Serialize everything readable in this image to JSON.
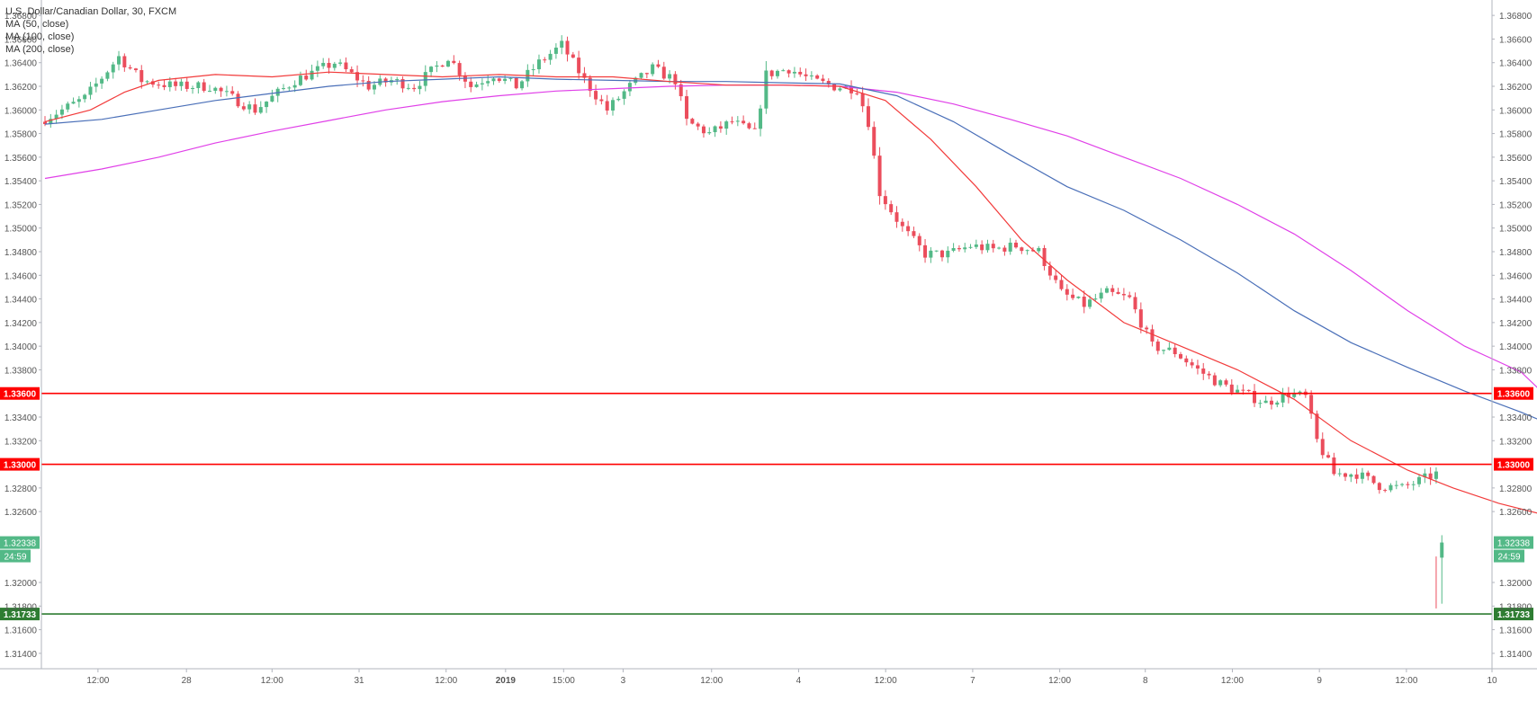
{
  "legend": {
    "title": "U.S. Dollar/Canadian Dollar, 30, FXCM",
    "ma50": "MA (50, close)",
    "ma100": "MA (100, close)",
    "ma200": "MA (200, close)"
  },
  "colors": {
    "up": "#53b987",
    "down": "#eb4d5c",
    "ma50": "#f23b3b",
    "ma100": "#4a6fb8",
    "ma200": "#e040e8",
    "resistance": "#ff0000",
    "support": "#2e7d32",
    "last_price": "#53b987"
  },
  "chart_data": {
    "type": "candlestick",
    "title": "U.S. Dollar/Canadian Dollar, 30, FXCM",
    "ylim": [
      1.313,
      1.369
    ],
    "y_ticks": [
      "1.36800",
      "1.36600",
      "1.36400",
      "1.36200",
      "1.36000",
      "1.35800",
      "1.35600",
      "1.35400",
      "1.35200",
      "1.35000",
      "1.34800",
      "1.34600",
      "1.34400",
      "1.34200",
      "1.34000",
      "1.33800",
      "1.33400",
      "1.33200",
      "1.32800",
      "1.32600",
      "1.32000",
      "1.31800",
      "1.31600",
      "1.31400"
    ],
    "y_tick_values": [
      1.368,
      1.366,
      1.364,
      1.362,
      1.36,
      1.358,
      1.356,
      1.354,
      1.352,
      1.35,
      1.348,
      1.346,
      1.344,
      1.342,
      1.34,
      1.338,
      1.334,
      1.332,
      1.328,
      1.326,
      1.32,
      1.318,
      1.316,
      1.314
    ],
    "x_range": [
      0,
      100
    ],
    "x_tick_labels": [
      "12:00",
      "28",
      "12:00",
      "31",
      "12:00",
      "2019",
      "15:00",
      "3",
      "12:00",
      "4",
      "12:00",
      "7",
      "12:00",
      "8",
      "12:00",
      "9",
      "12:00",
      "10"
    ],
    "x_tick_positions": [
      3.9,
      10.0,
      15.9,
      21.9,
      27.9,
      32.0,
      36.0,
      40.1,
      46.2,
      52.2,
      58.2,
      64.2,
      70.2,
      76.1,
      82.1,
      88.1,
      94.1,
      100.0
    ],
    "x_tick_bold": [
      false,
      false,
      false,
      false,
      false,
      true,
      false,
      false,
      false,
      false,
      false,
      false,
      false,
      false,
      false,
      false,
      false,
      false
    ],
    "candle_count": 247,
    "anchors": [
      [
        0,
        1.359
      ],
      [
        8,
        1.361
      ],
      [
        14,
        1.3645
      ],
      [
        18,
        1.3625
      ],
      [
        24,
        1.362
      ],
      [
        30,
        1.362
      ],
      [
        38,
        1.36
      ],
      [
        45,
        1.3625
      ],
      [
        52,
        1.364
      ],
      [
        58,
        1.362
      ],
      [
        62,
        1.3625
      ],
      [
        66,
        1.362
      ],
      [
        72,
        1.3645
      ],
      [
        76,
        1.362
      ],
      [
        80,
        1.363
      ],
      [
        84,
        1.362
      ],
      [
        88,
        1.364
      ],
      [
        92,
        1.3655
      ],
      [
        96,
        1.3625
      ],
      [
        100,
        1.36
      ],
      [
        104,
        1.362
      ],
      [
        108,
        1.3635
      ],
      [
        112,
        1.3625
      ],
      [
        114,
        1.359
      ],
      [
        118,
        1.358
      ],
      [
        122,
        1.359
      ],
      [
        126,
        1.358
      ],
      [
        128,
        1.363
      ],
      [
        132,
        1.3635
      ],
      [
        136,
        1.3625
      ],
      [
        140,
        1.362
      ],
      [
        144,
        1.3618
      ],
      [
        146,
        1.359
      ],
      [
        148,
        1.353
      ],
      [
        152,
        1.35
      ],
      [
        156,
        1.3478
      ],
      [
        160,
        1.3478
      ],
      [
        164,
        1.3485
      ],
      [
        168,
        1.3482
      ],
      [
        172,
        1.3485
      ],
      [
        176,
        1.348
      ],
      [
        180,
        1.3445
      ],
      [
        184,
        1.3435
      ],
      [
        188,
        1.3445
      ],
      [
        192,
        1.344
      ],
      [
        196,
        1.34
      ],
      [
        200,
        1.3395
      ],
      [
        204,
        1.338
      ],
      [
        208,
        1.3368
      ],
      [
        212,
        1.336
      ],
      [
        216,
        1.3352
      ],
      [
        220,
        1.336
      ],
      [
        223,
        1.3357
      ],
      [
        225,
        1.332
      ],
      [
        228,
        1.3292
      ],
      [
        232,
        1.3292
      ],
      [
        236,
        1.3282
      ],
      [
        240,
        1.328
      ],
      [
        244,
        1.3288
      ],
      [
        246,
        1.3292
      ],
      [
        247,
        1.328
      ],
      [
        248,
        1.329
      ],
      [
        250,
        1.329
      ]
    ],
    "last_candle": {
      "open": 1.3221,
      "high": 1.324,
      "low": 1.3182,
      "close": 1.32338
    },
    "ma_50": [
      [
        0,
        1.359
      ],
      [
        8,
        1.36
      ],
      [
        14,
        1.3615
      ],
      [
        20,
        1.3625
      ],
      [
        30,
        1.363
      ],
      [
        40,
        1.3628
      ],
      [
        50,
        1.3632
      ],
      [
        60,
        1.363
      ],
      [
        70,
        1.3628
      ],
      [
        80,
        1.363
      ],
      [
        90,
        1.3628
      ],
      [
        100,
        1.3628
      ],
      [
        110,
        1.3624
      ],
      [
        120,
        1.3621
      ],
      [
        130,
        1.3621
      ],
      [
        140,
        1.362
      ],
      [
        148,
        1.3608
      ],
      [
        156,
        1.3575
      ],
      [
        164,
        1.3535
      ],
      [
        172,
        1.349
      ],
      [
        180,
        1.3456
      ],
      [
        190,
        1.342
      ],
      [
        200,
        1.34
      ],
      [
        210,
        1.338
      ],
      [
        220,
        1.3355
      ],
      [
        230,
        1.332
      ],
      [
        240,
        1.3295
      ],
      [
        248,
        1.328
      ],
      [
        256,
        1.3267
      ],
      [
        265,
        1.3256
      ]
    ],
    "ma_100": [
      [
        0,
        1.3588
      ],
      [
        10,
        1.3592
      ],
      [
        20,
        1.36
      ],
      [
        30,
        1.3608
      ],
      [
        40,
        1.3614
      ],
      [
        50,
        1.362
      ],
      [
        60,
        1.3624
      ],
      [
        70,
        1.3626
      ],
      [
        80,
        1.3628
      ],
      [
        90,
        1.3626
      ],
      [
        100,
        1.3625
      ],
      [
        110,
        1.3624
      ],
      [
        120,
        1.3624
      ],
      [
        130,
        1.3623
      ],
      [
        140,
        1.3622
      ],
      [
        150,
        1.3612
      ],
      [
        160,
        1.359
      ],
      [
        170,
        1.3562
      ],
      [
        180,
        1.3535
      ],
      [
        190,
        1.3515
      ],
      [
        200,
        1.349
      ],
      [
        210,
        1.3462
      ],
      [
        220,
        1.343
      ],
      [
        230,
        1.3403
      ],
      [
        240,
        1.3382
      ],
      [
        250,
        1.3362
      ],
      [
        260,
        1.3344
      ],
      [
        265,
        1.3334
      ]
    ],
    "ma_200": [
      [
        0,
        1.3542
      ],
      [
        10,
        1.355
      ],
      [
        20,
        1.356
      ],
      [
        30,
        1.3572
      ],
      [
        40,
        1.3582
      ],
      [
        50,
        1.3591
      ],
      [
        60,
        1.36
      ],
      [
        70,
        1.3607
      ],
      [
        80,
        1.3612
      ],
      [
        90,
        1.3616
      ],
      [
        100,
        1.3618
      ],
      [
        110,
        1.362
      ],
      [
        120,
        1.3621
      ],
      [
        130,
        1.3621
      ],
      [
        140,
        1.362
      ],
      [
        150,
        1.3615
      ],
      [
        160,
        1.3605
      ],
      [
        170,
        1.3592
      ],
      [
        180,
        1.3578
      ],
      [
        190,
        1.356
      ],
      [
        200,
        1.3542
      ],
      [
        210,
        1.352
      ],
      [
        220,
        1.3495
      ],
      [
        230,
        1.3464
      ],
      [
        240,
        1.343
      ],
      [
        250,
        1.34
      ],
      [
        260,
        1.3378
      ],
      [
        265,
        1.3355
      ]
    ],
    "horizontal_lines": [
      {
        "value": 1.336,
        "label": "1.33600",
        "color": "#ff0000"
      },
      {
        "value": 1.33,
        "label": "1.33000",
        "color": "#ff0000"
      },
      {
        "value": 1.31733,
        "label": "1.31733",
        "color": "#2e7d32"
      }
    ],
    "last_price_label": "1.32338",
    "countdown_label": "24:59",
    "grid": false
  }
}
